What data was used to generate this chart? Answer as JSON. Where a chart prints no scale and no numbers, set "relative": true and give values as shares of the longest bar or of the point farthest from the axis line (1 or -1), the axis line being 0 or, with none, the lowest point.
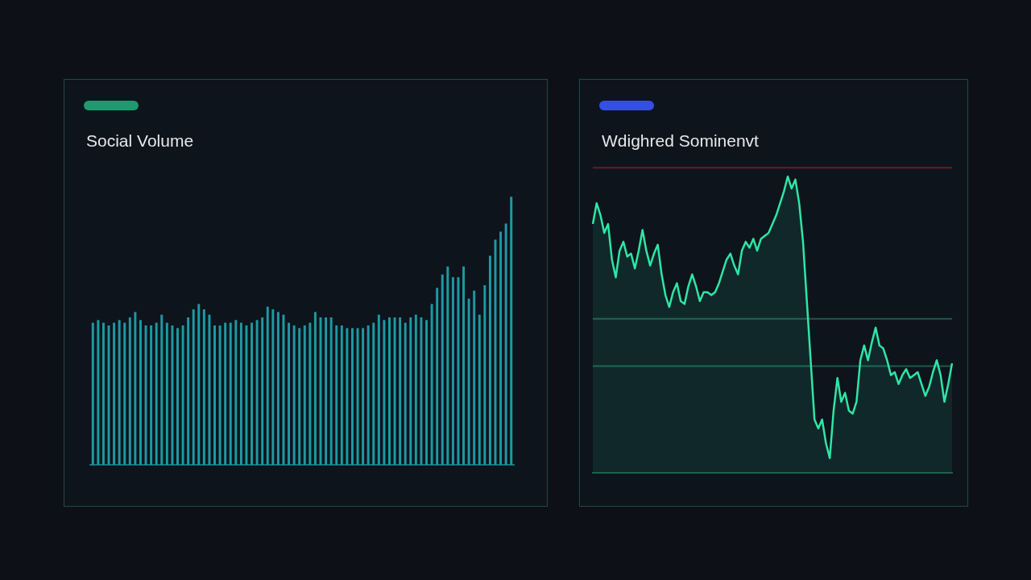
{
  "chart_data": [
    {
      "type": "bar",
      "title": "Social Volume",
      "relative": true,
      "color": "#1c9aa3",
      "categories": [
        null,
        null,
        null,
        null,
        null,
        null,
        null,
        null,
        null,
        null,
        null,
        null,
        null,
        null,
        null,
        null,
        null,
        null,
        null,
        null,
        null,
        null,
        null,
        null,
        null,
        null,
        null,
        null,
        null,
        null,
        null,
        null,
        null,
        null,
        null,
        null,
        null,
        null,
        null,
        null,
        null,
        null,
        null,
        null,
        null,
        null,
        null,
        null,
        null,
        null,
        null,
        null,
        null,
        null,
        null,
        null,
        null,
        null,
        null,
        null,
        null,
        null,
        null,
        null,
        null,
        null,
        null,
        null,
        null,
        null,
        null,
        null,
        null,
        null,
        null,
        null,
        null,
        null,
        null,
        null
      ],
      "values": [
        0.53,
        0.54,
        0.53,
        0.52,
        0.53,
        0.54,
        0.53,
        0.55,
        0.57,
        0.54,
        0.52,
        0.52,
        0.53,
        0.56,
        0.53,
        0.52,
        0.51,
        0.52,
        0.55,
        0.58,
        0.6,
        0.58,
        0.56,
        0.52,
        0.52,
        0.53,
        0.53,
        0.54,
        0.53,
        0.52,
        0.53,
        0.54,
        0.55,
        0.59,
        0.58,
        0.57,
        0.56,
        0.53,
        0.52,
        0.51,
        0.52,
        0.53,
        0.57,
        0.55,
        0.55,
        0.55,
        0.52,
        0.52,
        0.51,
        0.51,
        0.51,
        0.51,
        0.52,
        0.53,
        0.56,
        0.54,
        0.55,
        0.55,
        0.55,
        0.53,
        0.55,
        0.56,
        0.55,
        0.54,
        0.6,
        0.66,
        0.71,
        0.74,
        0.7,
        0.7,
        0.74,
        0.62,
        0.65,
        0.56,
        0.67,
        0.78,
        0.84,
        0.87,
        0.9,
        1.0
      ]
    },
    {
      "type": "area",
      "title": "Wdighred Sominenvt",
      "relative": true,
      "color": "#2ee6a6",
      "categories": [
        null,
        null,
        null,
        null,
        null,
        null,
        null,
        null,
        null,
        null,
        null,
        null,
        null,
        null,
        null,
        null,
        null,
        null,
        null,
        null,
        null,
        null,
        null,
        null,
        null,
        null,
        null,
        null,
        null,
        null,
        null,
        null,
        null,
        null,
        null,
        null,
        null,
        null,
        null,
        null,
        null,
        null,
        null,
        null,
        null,
        null,
        null,
        null,
        null,
        null,
        null,
        null,
        null,
        null,
        null,
        null,
        null,
        null,
        null,
        null,
        null,
        null,
        null,
        null,
        null,
        null,
        null,
        null,
        null,
        null,
        null,
        null,
        null,
        null,
        null,
        null,
        null,
        null,
        null,
        null,
        null,
        null,
        null,
        null,
        null,
        null,
        null,
        null,
        null,
        null,
        null,
        null,
        null,
        null,
        null
      ],
      "values": [
        0.84,
        0.91,
        0.87,
        0.81,
        0.84,
        0.72,
        0.66,
        0.75,
        0.78,
        0.73,
        0.74,
        0.69,
        0.75,
        0.82,
        0.75,
        0.7,
        0.74,
        0.77,
        0.67,
        0.6,
        0.56,
        0.61,
        0.64,
        0.58,
        0.57,
        0.63,
        0.67,
        0.63,
        0.58,
        0.61,
        0.61,
        0.6,
        0.61,
        0.64,
        0.68,
        0.72,
        0.74,
        0.7,
        0.67,
        0.75,
        0.78,
        0.76,
        0.79,
        0.75,
        0.79,
        0.8,
        0.81,
        0.84,
        0.87,
        0.91,
        0.95,
        1.0,
        0.96,
        0.99,
        0.91,
        0.78,
        0.58,
        0.38,
        0.18,
        0.15,
        0.18,
        0.1,
        0.05,
        0.21,
        0.32,
        0.24,
        0.27,
        0.21,
        0.2,
        0.24,
        0.38,
        0.43,
        0.38,
        0.44,
        0.49,
        0.43,
        0.42,
        0.38,
        0.33,
        0.34,
        0.3,
        0.33,
        0.35,
        0.32,
        0.33,
        0.34,
        0.3,
        0.26,
        0.29,
        0.34,
        0.38,
        0.33,
        0.24,
        0.3,
        0.37
      ],
      "ref_lines": [
        {
          "axis": "y",
          "value": 1.03,
          "color": "#6b1a2a"
        },
        {
          "axis": "y",
          "value": 0.52,
          "color": "#1d5a48"
        },
        {
          "axis": "y",
          "value": 0.36,
          "color": "#1d5a48"
        }
      ]
    }
  ]
}
